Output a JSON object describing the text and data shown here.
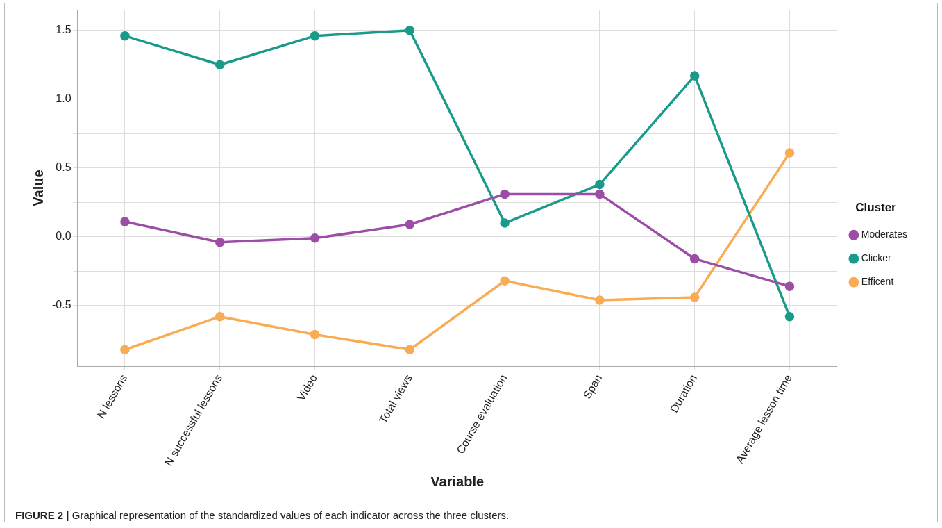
{
  "chart_data": {
    "type": "line",
    "xlabel": "Variable",
    "ylabel": "Value",
    "legend_title": "Cluster",
    "categories": [
      "N lessons",
      "N successful lessons",
      "Video",
      "Total views",
      "Course evaluation",
      "Span",
      "Duration",
      "Average lesson time"
    ],
    "series": [
      {
        "name": "Moderates",
        "color": "#9c4ea6",
        "values": [
          0.11,
          -0.04,
          -0.01,
          0.09,
          0.31,
          0.31,
          -0.16,
          -0.36
        ]
      },
      {
        "name": "Clicker",
        "color": "#1a9a8a",
        "values": [
          1.46,
          1.25,
          1.46,
          1.5,
          0.1,
          0.38,
          1.17,
          -0.58
        ]
      },
      {
        "name": "Efficent",
        "color": "#f9ac53",
        "values": [
          -0.82,
          -0.58,
          -0.71,
          -0.82,
          -0.32,
          -0.46,
          -0.44,
          0.61
        ]
      }
    ],
    "ylim": [
      -0.94,
      1.65
    ],
    "yticks": [
      {
        "value": -0.75,
        "label": null
      },
      -0.5,
      {
        "value": -0.25,
        "label": null
      },
      {
        "value": 0,
        "label": "0.0"
      },
      {
        "value": 0.25,
        "label": null
      },
      0.5,
      {
        "value": 0.75,
        "label": null
      },
      {
        "value": 1,
        "label": "1.0"
      },
      {
        "value": 1.25,
        "label": null
      },
      1.5
    ],
    "grid": true,
    "legend": "right",
    "marker": "circle",
    "line_style": "solid",
    "annotations": [
      "FIGURE 2 | Graphical representation of the standardized values of each indicator across the three clusters."
    ]
  }
}
